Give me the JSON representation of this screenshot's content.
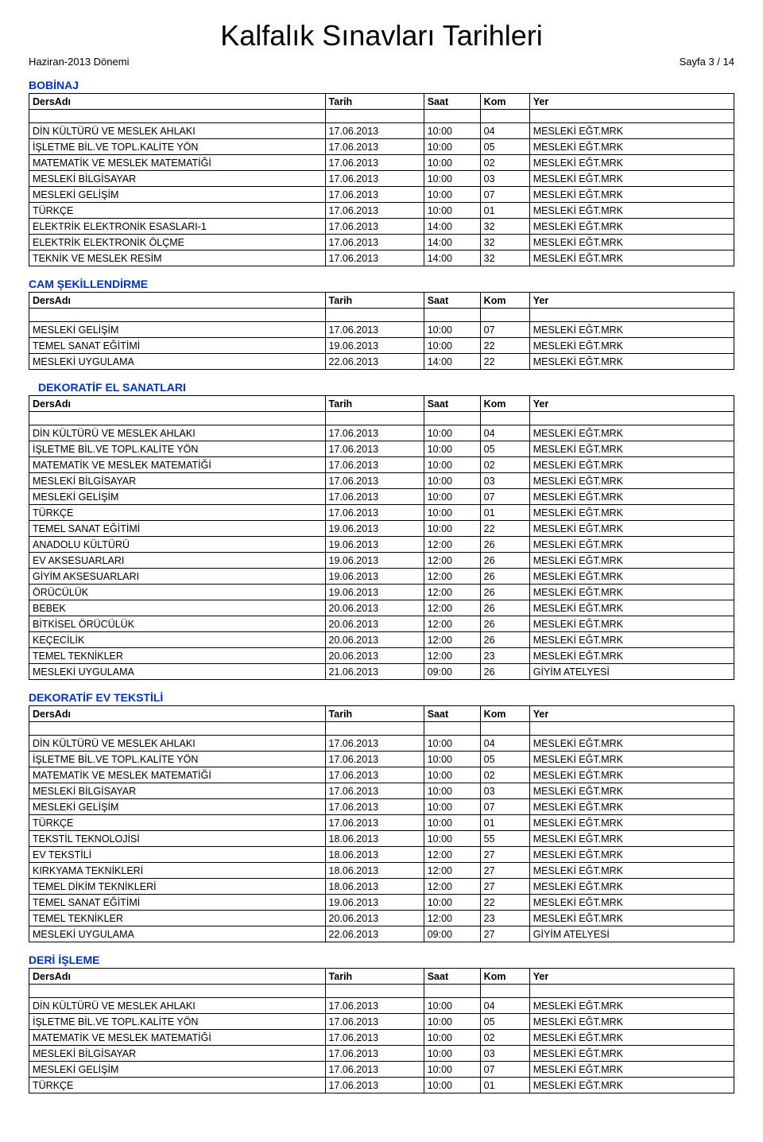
{
  "title": "Kalfalık Sınavları Tarihleri",
  "period": "Haziran-2013 Dönemi",
  "page_label": "Sayfa 3 / 14",
  "columns": {
    "ders": "DersAdı",
    "tarih": "Tarih",
    "saat": "Saat",
    "kom": "Kom",
    "yer": "Yer"
  },
  "sections": [
    {
      "name": "BOBİNAJ",
      "indent": false,
      "rows": [
        [
          "DİN KÜLTÜRÜ VE MESLEK AHLAKI",
          "17.06.2013",
          "10:00",
          "04",
          "MESLEKİ EĞT.MRK"
        ],
        [
          "İŞLETME BİL.VE TOPL.KALİTE YÖN",
          "17.06.2013",
          "10:00",
          "05",
          "MESLEKİ EĞT.MRK"
        ],
        [
          "MATEMATİK VE MESLEK MATEMATİĞİ",
          "17.06.2013",
          "10:00",
          "02",
          "MESLEKİ EĞT.MRK"
        ],
        [
          "MESLEKİ BİLGİSAYAR",
          "17.06.2013",
          "10:00",
          "03",
          "MESLEKİ EĞT.MRK"
        ],
        [
          "MESLEKİ GELİŞİM",
          "17.06.2013",
          "10:00",
          "07",
          "MESLEKİ EĞT.MRK"
        ],
        [
          "TÜRKÇE",
          "17.06.2013",
          "10:00",
          "01",
          "MESLEKİ EĞT.MRK"
        ],
        [
          "ELEKTRİK ELEKTRONİK ESASLARI-1",
          "17.06.2013",
          "14:00",
          "32",
          "MESLEKİ EĞT.MRK"
        ],
        [
          "ELEKTRİK ELEKTRONİK ÖLÇME",
          "17.06.2013",
          "14:00",
          "32",
          "MESLEKİ EĞT.MRK"
        ],
        [
          "TEKNİK VE MESLEK RESİM",
          "17.06.2013",
          "14:00",
          "32",
          "MESLEKİ EĞT.MRK"
        ]
      ]
    },
    {
      "name": "CAM ŞEKİLLENDİRME",
      "indent": false,
      "rows": [
        [
          "MESLEKİ GELİŞİM",
          "17.06.2013",
          "10:00",
          "07",
          "MESLEKİ EĞT.MRK"
        ],
        [
          "TEMEL SANAT EĞİTİMİ",
          "19.06.2013",
          "10:00",
          "22",
          "MESLEKİ EĞT.MRK"
        ],
        [
          "MESLEKİ UYGULAMA",
          "22.06.2013",
          "14:00",
          "22",
          "MESLEKİ EĞT.MRK"
        ]
      ]
    },
    {
      "name": "DEKORATİF EL SANATLARI",
      "indent": true,
      "rows": [
        [
          "DİN KÜLTÜRÜ VE MESLEK AHLAKI",
          "17.06.2013",
          "10:00",
          "04",
          "MESLEKİ EĞT.MRK"
        ],
        [
          "İŞLETME BİL.VE TOPL.KALİTE YÖN",
          "17.06.2013",
          "10:00",
          "05",
          "MESLEKİ EĞT.MRK"
        ],
        [
          "MATEMATİK VE MESLEK MATEMATİĞİ",
          "17.06.2013",
          "10:00",
          "02",
          "MESLEKİ EĞT.MRK"
        ],
        [
          "MESLEKİ BİLGİSAYAR",
          "17.06.2013",
          "10:00",
          "03",
          "MESLEKİ EĞT.MRK"
        ],
        [
          "MESLEKİ GELİŞİM",
          "17.06.2013",
          "10:00",
          "07",
          "MESLEKİ EĞT.MRK"
        ],
        [
          "TÜRKÇE",
          "17.06.2013",
          "10:00",
          "01",
          "MESLEKİ EĞT.MRK"
        ],
        [
          "TEMEL SANAT EĞİTİMİ",
          "19.06.2013",
          "10:00",
          "22",
          "MESLEKİ EĞT.MRK"
        ],
        [
          "ANADOLU KÜLTÜRÜ",
          "19.06.2013",
          "12:00",
          "26",
          "MESLEKİ EĞT.MRK"
        ],
        [
          "EV AKSESUARLARI",
          "19.06.2013",
          "12:00",
          "26",
          "MESLEKİ EĞT.MRK"
        ],
        [
          "GİYİM AKSESUARLARI",
          "19.06.2013",
          "12:00",
          "26",
          "MESLEKİ EĞT.MRK"
        ],
        [
          "ÖRÜCÜLÜK",
          "19.06.2013",
          "12:00",
          "26",
          "MESLEKİ EĞT.MRK"
        ],
        [
          "BEBEK",
          "20.06.2013",
          "12:00",
          "26",
          "MESLEKİ EĞT.MRK"
        ],
        [
          "BİTKİSEL ÖRÜCÜLÜK",
          "20.06.2013",
          "12:00",
          "26",
          "MESLEKİ EĞT.MRK"
        ],
        [
          "KEÇECİLİK",
          "20.06.2013",
          "12:00",
          "26",
          "MESLEKİ EĞT.MRK"
        ],
        [
          "TEMEL TEKNİKLER",
          "20.06.2013",
          "12:00",
          "23",
          "MESLEKİ EĞT.MRK"
        ],
        [
          "MESLEKİ UYGULAMA",
          "21.06.2013",
          "09:00",
          "26",
          "GİYİM ATELYESİ"
        ]
      ]
    },
    {
      "name": "DEKORATİF EV TEKSTİLİ",
      "indent": false,
      "rows": [
        [
          "DİN KÜLTÜRÜ VE MESLEK AHLAKI",
          "17.06.2013",
          "10:00",
          "04",
          "MESLEKİ EĞT.MRK"
        ],
        [
          "İŞLETME BİL.VE TOPL.KALİTE YÖN",
          "17.06.2013",
          "10:00",
          "05",
          "MESLEKİ EĞT.MRK"
        ],
        [
          "MATEMATİK VE MESLEK MATEMATİĞİ",
          "17.06.2013",
          "10:00",
          "02",
          "MESLEKİ EĞT.MRK"
        ],
        [
          "MESLEKİ BİLGİSAYAR",
          "17.06.2013",
          "10:00",
          "03",
          "MESLEKİ EĞT.MRK"
        ],
        [
          "MESLEKİ GELİŞİM",
          "17.06.2013",
          "10:00",
          "07",
          "MESLEKİ EĞT.MRK"
        ],
        [
          "TÜRKÇE",
          "17.06.2013",
          "10:00",
          "01",
          "MESLEKİ EĞT.MRK"
        ],
        [
          "TEKSTİL TEKNOLOJİSİ",
          "18.06.2013",
          "10:00",
          "55",
          "MESLEKİ EĞT.MRK"
        ],
        [
          "EV TEKSTİLİ",
          "18.06.2013",
          "12:00",
          "27",
          "MESLEKİ EĞT.MRK"
        ],
        [
          "KIRKYAMA TEKNİKLERİ",
          "18.06.2013",
          "12:00",
          "27",
          "MESLEKİ EĞT.MRK"
        ],
        [
          "TEMEL DİKİM TEKNİKLERİ",
          "18.06.2013",
          "12:00",
          "27",
          "MESLEKİ EĞT.MRK"
        ],
        [
          "TEMEL SANAT EĞİTİMİ",
          "19.06.2013",
          "10:00",
          "22",
          "MESLEKİ EĞT.MRK"
        ],
        [
          "TEMEL TEKNİKLER",
          "20.06.2013",
          "12:00",
          "23",
          "MESLEKİ EĞT.MRK"
        ],
        [
          "MESLEKİ UYGULAMA",
          "22.06.2013",
          "09:00",
          "27",
          "GİYİM ATELYESİ"
        ]
      ]
    },
    {
      "name": "DERİ İŞLEME",
      "indent": false,
      "rows": [
        [
          "DİN KÜLTÜRÜ VE MESLEK AHLAKI",
          "17.06.2013",
          "10:00",
          "04",
          "MESLEKİ EĞT.MRK"
        ],
        [
          "İŞLETME BİL.VE TOPL.KALİTE YÖN",
          "17.06.2013",
          "10:00",
          "05",
          "MESLEKİ EĞT.MRK"
        ],
        [
          "MATEMATİK VE MESLEK MATEMATİĞİ",
          "17.06.2013",
          "10:00",
          "02",
          "MESLEKİ EĞT.MRK"
        ],
        [
          "MESLEKİ BİLGİSAYAR",
          "17.06.2013",
          "10:00",
          "03",
          "MESLEKİ EĞT.MRK"
        ],
        [
          "MESLEKİ GELİŞİM",
          "17.06.2013",
          "10:00",
          "07",
          "MESLEKİ EĞT.MRK"
        ],
        [
          "TÜRKÇE",
          "17.06.2013",
          "10:00",
          "01",
          "MESLEKİ EĞT.MRK"
        ]
      ]
    }
  ],
  "style": {
    "title_color": "#000000",
    "section_color": "#0033cc",
    "border_color": "#000000",
    "background": "#ffffff",
    "font_family": "Arial",
    "title_fontsize": 36,
    "body_fontsize": 13,
    "col_widths_pct": [
      42,
      14,
      8,
      7,
      29
    ]
  }
}
